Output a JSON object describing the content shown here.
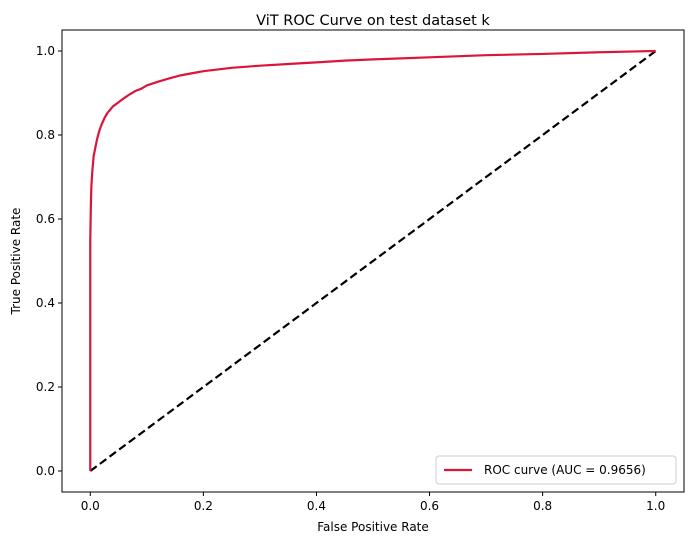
{
  "chart_data": {
    "type": "line",
    "title": "ViT ROC Curve on test dataset k",
    "xlabel": "False Positive Rate",
    "ylabel": "True Positive Rate",
    "xlim": [
      -0.05,
      1.05
    ],
    "ylim": [
      -0.05,
      1.05
    ],
    "xticks": [
      0.0,
      0.2,
      0.4,
      0.6,
      0.8,
      1.0
    ],
    "yticks": [
      0.0,
      0.2,
      0.4,
      0.6,
      0.8,
      1.0
    ],
    "xtick_labels": [
      "0.0",
      "0.2",
      "0.4",
      "0.6",
      "0.8",
      "1.0"
    ],
    "ytick_labels": [
      "0.0",
      "0.2",
      "0.4",
      "0.6",
      "0.8",
      "1.0"
    ],
    "grid": false,
    "legend_position": "lower-right",
    "series": [
      {
        "name": "ROC curve (AUC = 0.9656)",
        "color": "#dc143c",
        "style": "solid",
        "x": [
          0.0,
          0.0,
          0.001,
          0.002,
          0.004,
          0.006,
          0.009,
          0.012,
          0.016,
          0.02,
          0.025,
          0.03,
          0.04,
          0.05,
          0.06,
          0.07,
          0.08,
          0.09,
          0.1,
          0.12,
          0.14,
          0.16,
          0.18,
          0.2,
          0.25,
          0.3,
          0.35,
          0.4,
          0.45,
          0.5,
          0.6,
          0.7,
          0.8,
          0.9,
          1.0
        ],
        "y": [
          0.0,
          0.55,
          0.63,
          0.68,
          0.72,
          0.75,
          0.77,
          0.79,
          0.81,
          0.825,
          0.84,
          0.852,
          0.868,
          0.878,
          0.888,
          0.897,
          0.905,
          0.91,
          0.918,
          0.927,
          0.935,
          0.942,
          0.947,
          0.952,
          0.96,
          0.965,
          0.969,
          0.973,
          0.977,
          0.98,
          0.985,
          0.99,
          0.993,
          0.997,
          1.0
        ]
      },
      {
        "name": "",
        "color": "#000000",
        "style": "dashed",
        "x": [
          0.0,
          1.0
        ],
        "y": [
          0.0,
          1.0
        ]
      }
    ]
  }
}
